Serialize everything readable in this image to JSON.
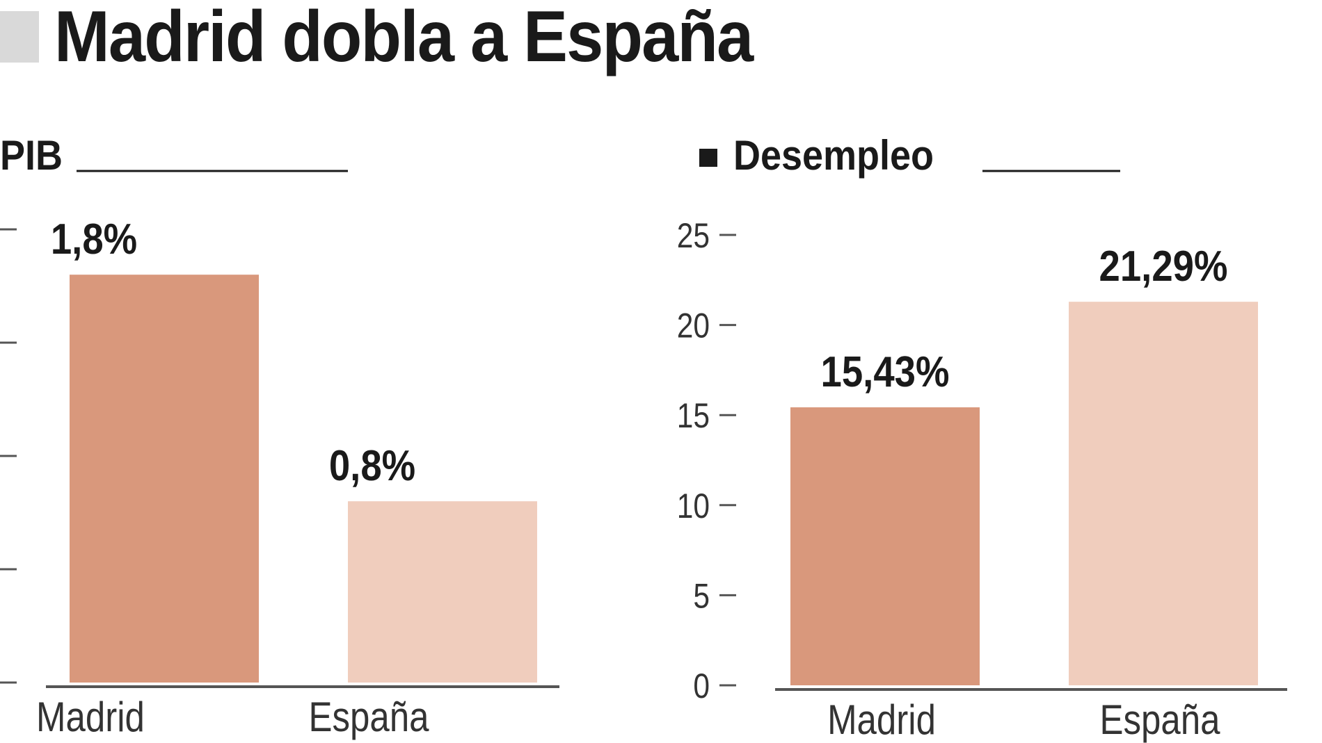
{
  "title": "Madrid dobla a España",
  "colors": {
    "madrid": "#d9987c",
    "espana": "#f0cdbd",
    "text": "#1a1a1a",
    "axis": "#555555",
    "title_block": "#d9d9d9"
  },
  "chart_data": [
    {
      "type": "bar",
      "title": "PIB",
      "categories": [
        "Madrid",
        "España"
      ],
      "values": [
        1.8,
        0.8
      ],
      "value_labels": [
        "1,8%",
        "0,8%"
      ],
      "ylim": [
        0,
        2
      ],
      "ytick_values": [
        0,
        0.5,
        1,
        1.5,
        2
      ],
      "grid": false,
      "legend": "none"
    },
    {
      "type": "bar",
      "title": "Desempleo",
      "title_marker": "square-icon",
      "categories": [
        "Madrid",
        "España"
      ],
      "values": [
        15.43,
        21.29
      ],
      "value_labels": [
        "15,43%",
        "21,29%"
      ],
      "ylim": [
        0,
        25
      ],
      "yticks": [
        "0",
        "5",
        "10",
        "15",
        "20",
        "25"
      ],
      "ytick_values": [
        0,
        5,
        10,
        15,
        20,
        25
      ],
      "grid": false,
      "legend": "none"
    }
  ]
}
